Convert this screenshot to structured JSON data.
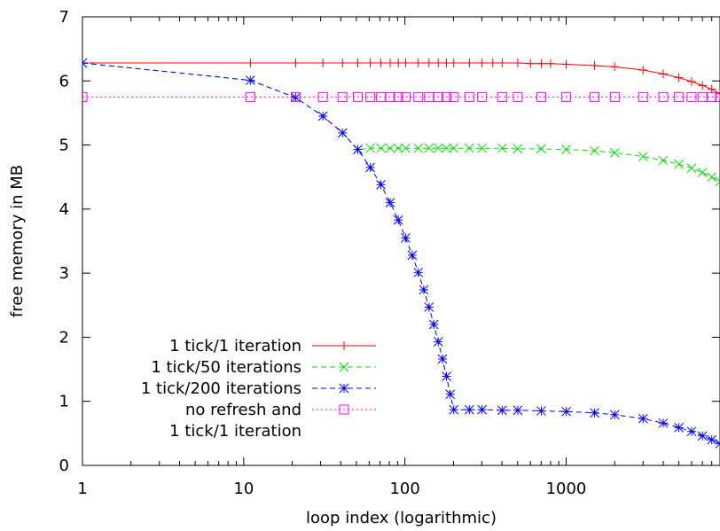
{
  "chart_data": {
    "type": "line",
    "xlabel": "loop index (logarithmic)",
    "ylabel": "free memory in MB",
    "x_scale": "log",
    "xlim": [
      1,
      9000
    ],
    "ylim": [
      0,
      7
    ],
    "x_ticks": [
      1,
      10,
      100,
      1000
    ],
    "x_tick_labels": [
      "1",
      "10",
      "100",
      "1000"
    ],
    "y_ticks": [
      0,
      1,
      2,
      3,
      4,
      5,
      6,
      7
    ],
    "y_tick_labels": [
      "0",
      "1",
      "2",
      "3",
      "4",
      "5",
      "6",
      "7"
    ],
    "grid": false,
    "legend_position": "bottom-left",
    "series": [
      {
        "name": "1 tick/1 iteration",
        "color": "#ff0000",
        "dash": "solid",
        "marker": "plus",
        "x": [
          1,
          11,
          21,
          31,
          41,
          51,
          61,
          71,
          81,
          91,
          101,
          121,
          141,
          161,
          181,
          201,
          251,
          301,
          351,
          401,
          501,
          601,
          701,
          801,
          1001,
          1501,
          2001,
          3001,
          4001,
          5001,
          6001,
          7001,
          8001,
          9000
        ],
        "y": [
          6.28,
          6.28,
          6.28,
          6.28,
          6.28,
          6.28,
          6.28,
          6.28,
          6.28,
          6.28,
          6.28,
          6.28,
          6.28,
          6.28,
          6.28,
          6.28,
          6.28,
          6.28,
          6.28,
          6.28,
          6.28,
          6.27,
          6.27,
          6.27,
          6.26,
          6.24,
          6.22,
          6.17,
          6.11,
          6.05,
          5.99,
          5.93,
          5.87,
          5.8
        ]
      },
      {
        "name": "1 tick/50 iterations",
        "color": "#00dd00",
        "dash": "dashed",
        "marker": "cross",
        "x": [
          1,
          11,
          21,
          31,
          41,
          51,
          61,
          71,
          81,
          91,
          101,
          121,
          141,
          161,
          181,
          201,
          251,
          301,
          401,
          501,
          701,
          1001,
          1501,
          2001,
          3001,
          4001,
          5001,
          6001,
          7001,
          8001,
          9000
        ],
        "y": [
          6.28,
          6.01,
          5.74,
          5.45,
          5.19,
          4.93,
          4.95,
          4.95,
          4.95,
          4.95,
          4.95,
          4.95,
          4.95,
          4.95,
          4.95,
          4.95,
          4.95,
          4.95,
          4.95,
          4.94,
          4.94,
          4.93,
          4.91,
          4.88,
          4.82,
          4.76,
          4.7,
          4.64,
          4.57,
          4.5,
          4.43
        ]
      },
      {
        "name": "1 tick/200 iterations",
        "color": "#0000ff",
        "dash": "dashed",
        "marker": "star",
        "x": [
          1,
          11,
          21,
          31,
          41,
          51,
          61,
          71,
          81,
          91,
          101,
          111,
          121,
          131,
          141,
          151,
          161,
          171,
          181,
          191,
          201,
          251,
          301,
          401,
          501,
          701,
          1001,
          1501,
          2001,
          3001,
          4001,
          5001,
          6001,
          7001,
          8001,
          9000
        ],
        "y": [
          6.28,
          6.01,
          5.74,
          5.45,
          5.19,
          4.93,
          4.65,
          4.38,
          4.1,
          3.83,
          3.55,
          3.28,
          3.01,
          2.74,
          2.47,
          2.2,
          1.93,
          1.66,
          1.39,
          1.11,
          0.87,
          0.87,
          0.87,
          0.86,
          0.86,
          0.85,
          0.84,
          0.82,
          0.79,
          0.73,
          0.66,
          0.59,
          0.53,
          0.46,
          0.4,
          0.34
        ]
      },
      {
        "name": "no refresh and\n1 tick/1 iteration",
        "color": "#ff00ff",
        "dash": "dotted",
        "marker": "square",
        "x": [
          1,
          11,
          21,
          31,
          41,
          51,
          61,
          71,
          81,
          91,
          101,
          121,
          141,
          161,
          181,
          201,
          251,
          301,
          401,
          501,
          701,
          1001,
          1501,
          2001,
          3001,
          4001,
          5001,
          6001,
          7001,
          8001,
          9000
        ],
        "y": [
          5.75,
          5.75,
          5.75,
          5.75,
          5.75,
          5.75,
          5.75,
          5.75,
          5.75,
          5.75,
          5.75,
          5.75,
          5.75,
          5.75,
          5.75,
          5.75,
          5.75,
          5.75,
          5.75,
          5.75,
          5.75,
          5.75,
          5.75,
          5.75,
          5.75,
          5.75,
          5.75,
          5.75,
          5.75,
          5.75,
          5.75
        ]
      }
    ]
  }
}
